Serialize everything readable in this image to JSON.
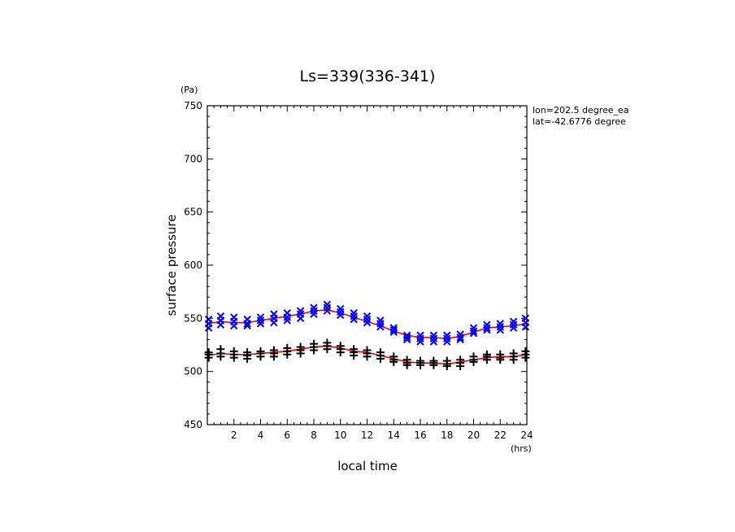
{
  "chart_data": {
    "type": "scatter",
    "title": "Ls=339(336-341)",
    "xlabel": "local time",
    "ylabel": "surface pressure",
    "x_unit": "(hrs)",
    "y_unit": "(Pa)",
    "xlim": [
      0,
      24
    ],
    "ylim": [
      450,
      750
    ],
    "x_ticks": [
      2,
      4,
      6,
      8,
      10,
      12,
      14,
      16,
      18,
      20,
      22,
      24
    ],
    "y_ticks": [
      450,
      500,
      550,
      600,
      650,
      700,
      750
    ],
    "grid": false,
    "annotations": [
      "lon=202.5 degree_ea",
      "lat=-42.6776 degree"
    ],
    "series": [
      {
        "marker": "x",
        "color": "#0000ff",
        "x": [
          0.1,
          0.1,
          0.1,
          1,
          1,
          1,
          2,
          2,
          2,
          3,
          3,
          3,
          4,
          4,
          4,
          5,
          5,
          5,
          6,
          6,
          6,
          7,
          7,
          7,
          8,
          8,
          8,
          9,
          9,
          9,
          10,
          10,
          10,
          11,
          11,
          11,
          12,
          12,
          12,
          13,
          13,
          13,
          14,
          14,
          14,
          15,
          15,
          15,
          16,
          16,
          16,
          17,
          17,
          17,
          18,
          18,
          18,
          19,
          19,
          19,
          20,
          20,
          20,
          21,
          21,
          21,
          22,
          22,
          22,
          23,
          23,
          23,
          23.9,
          23.9,
          23.9
        ],
        "y": [
          549,
          545,
          541,
          552,
          548,
          544,
          551,
          547,
          543,
          549,
          545,
          543,
          551,
          548,
          545,
          554,
          550,
          546,
          555,
          551,
          548,
          557,
          554,
          550,
          560,
          557,
          554,
          563,
          560,
          557,
          559,
          556,
          553,
          555,
          552,
          549,
          552,
          549,
          546,
          548,
          545,
          542,
          541,
          539,
          537,
          534,
          532,
          530,
          534,
          531,
          528,
          534,
          531,
          528,
          534,
          531,
          528,
          535,
          532,
          530,
          541,
          538,
          536,
          544,
          541,
          539,
          545,
          542,
          539,
          547,
          544,
          541,
          550,
          546,
          542
        ]
      },
      {
        "marker": "+",
        "color": "#000000",
        "x": [
          0.1,
          0.1,
          0.1,
          1,
          1,
          1,
          2,
          2,
          2,
          3,
          3,
          3,
          4,
          4,
          4,
          5,
          5,
          5,
          6,
          6,
          6,
          7,
          7,
          7,
          8,
          8,
          8,
          9,
          9,
          9,
          10,
          10,
          10,
          11,
          11,
          11,
          12,
          12,
          12,
          13,
          13,
          13,
          14,
          14,
          14,
          15,
          15,
          15,
          16,
          16,
          16,
          17,
          17,
          17,
          18,
          18,
          18,
          19,
          19,
          19,
          20,
          20,
          20,
          21,
          21,
          21,
          22,
          22,
          22,
          23,
          23,
          23,
          23.9,
          23.9,
          23.9
        ],
        "y": [
          518,
          516,
          513,
          521,
          517,
          514,
          519,
          516,
          513,
          518,
          515,
          512,
          519,
          517,
          514,
          520,
          517,
          514,
          522,
          519,
          516,
          523,
          520,
          517,
          526,
          523,
          520,
          527,
          524,
          521,
          524,
          521,
          518,
          521,
          518,
          515,
          520,
          517,
          514,
          518,
          515,
          512,
          514,
          511,
          509,
          511,
          508,
          506,
          510,
          508,
          506,
          510,
          508,
          506,
          510,
          507,
          505,
          511,
          508,
          505,
          514,
          511,
          509,
          516,
          514,
          511,
          516,
          513,
          511,
          517,
          514,
          511,
          519,
          516,
          513
        ]
      },
      {
        "name": "",
        "type": "line",
        "color": "#ff0000",
        "x": [
          0,
          1,
          2,
          3,
          4,
          5,
          6,
          7,
          8,
          9,
          10,
          11,
          12,
          13,
          14,
          15,
          16,
          17,
          18,
          19,
          20,
          21,
          22,
          23,
          24
        ],
        "y": [
          545,
          547,
          546,
          546,
          548,
          550,
          552,
          554,
          557,
          558,
          555,
          551,
          547,
          543,
          538,
          534,
          532,
          532,
          531,
          533,
          537,
          541,
          542,
          543,
          545
        ]
      },
      {
        "name": "",
        "type": "line",
        "color": "#ff0000",
        "x": [
          0,
          1,
          2,
          3,
          4,
          5,
          6,
          7,
          8,
          9,
          10,
          11,
          12,
          13,
          14,
          15,
          16,
          17,
          18,
          19,
          20,
          21,
          22,
          23,
          24
        ],
        "y": [
          515,
          517,
          516,
          516,
          517,
          518,
          519,
          521,
          523,
          524,
          522,
          519,
          518,
          515,
          512,
          509,
          508,
          508,
          507,
          509,
          511,
          513,
          514,
          514,
          516
        ]
      }
    ]
  }
}
